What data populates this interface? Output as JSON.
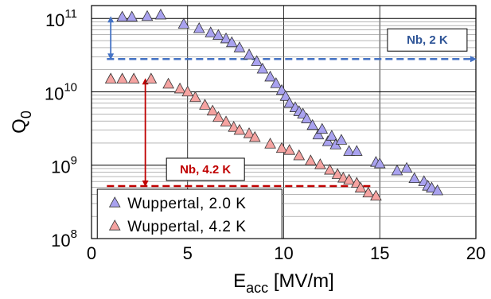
{
  "chart_data": {
    "type": "scatter",
    "title": "",
    "xlabel_main": "E",
    "xlabel_sub": "acc",
    "xlabel_unit": " [MV/m]",
    "ylabel_main": "Q",
    "ylabel_sub": "0",
    "x_scale": "linear",
    "y_scale": "log",
    "xlim": [
      0,
      20
    ],
    "ylim": [
      100000000.0,
      150000000000.0
    ],
    "grid": true,
    "x_ticks": [
      0,
      5,
      10,
      15,
      20
    ],
    "x_tick_labels": [
      "0",
      "5",
      "10",
      "15",
      "20"
    ],
    "y_ticks": [
      {
        "value": 100000000.0,
        "base": "10",
        "exp": "8"
      },
      {
        "value": 1000000000.0,
        "base": "10",
        "exp": "9"
      },
      {
        "value": 10000000000.0,
        "base": "10",
        "exp": "10"
      },
      {
        "value": 100000000000.0,
        "base": "10",
        "exp": "11"
      }
    ],
    "legend_position": "bottom-left",
    "series": [
      {
        "name": "Wuppertal, 2.0 K",
        "color": "#a9a2ef",
        "marker": "triangle",
        "points": [
          [
            1.6,
            105000000000.0
          ],
          [
            2.1,
            105000000000.0
          ],
          [
            2.9,
            107000000000.0
          ],
          [
            3.6,
            112000000000.0
          ],
          [
            4.8,
            84000000000.0
          ],
          [
            5.6,
            73000000000.0
          ],
          [
            6.2,
            64000000000.0
          ],
          [
            6.6,
            59000000000.0
          ],
          [
            7.0,
            53000000000.0
          ],
          [
            7.3,
            47000000000.0
          ],
          [
            7.7,
            40000000000.0
          ],
          [
            8.2,
            32000000000.0
          ],
          [
            8.6,
            26000000000.0
          ],
          [
            8.9,
            20500000000.0
          ],
          [
            9.3,
            16000000000.0
          ],
          [
            9.6,
            13000000000.0
          ],
          [
            9.9,
            10500000000.0
          ],
          [
            10.1,
            8700000000.0
          ],
          [
            10.3,
            7000000000.0
          ],
          [
            10.6,
            6100000000.0
          ],
          [
            10.8,
            5400000000.0
          ],
          [
            11.0,
            5000000000.0
          ],
          [
            11.2,
            4300000000.0
          ],
          [
            11.5,
            3500000000.0
          ],
          [
            11.8,
            2600000000.0
          ],
          [
            12.0,
            3100000000.0
          ],
          [
            12.3,
            2100000000.0
          ],
          [
            12.5,
            2500000000.0
          ],
          [
            12.7,
            1900000000.0
          ],
          [
            13.0,
            2200000000.0
          ],
          [
            13.4,
            1550000000.0
          ],
          [
            13.8,
            1550000000.0
          ],
          [
            14.8,
            1100000000.0
          ],
          [
            15.0,
            1050000000.0
          ],
          [
            15.9,
            840000000.0
          ],
          [
            16.4,
            910000000.0
          ],
          [
            16.8,
            660000000.0
          ],
          [
            17.3,
            600000000.0
          ],
          [
            17.5,
            520000000.0
          ],
          [
            17.7,
            490000000.0
          ],
          [
            18.0,
            450000000.0
          ]
        ]
      },
      {
        "name": "Wuppertal, 4.2 K",
        "color": "#f5a3a1",
        "marker": "triangle",
        "points": [
          [
            1.0,
            15000000000.0
          ],
          [
            1.6,
            15000000000.0
          ],
          [
            2.2,
            15000000000.0
          ],
          [
            3.1,
            15000000000.0
          ],
          [
            4.0,
            12800000000.0
          ],
          [
            4.6,
            11000000000.0
          ],
          [
            5.0,
            10000000000.0
          ],
          [
            5.4,
            8400000000.0
          ],
          [
            5.9,
            6600000000.0
          ],
          [
            6.3,
            5500000000.0
          ],
          [
            6.6,
            4500000000.0
          ],
          [
            7.0,
            3900000000.0
          ],
          [
            7.4,
            3300000000.0
          ],
          [
            7.7,
            3000000000.0
          ],
          [
            8.2,
            2700000000.0
          ],
          [
            8.5,
            2400000000.0
          ],
          [
            9.3,
            1950000000.0
          ],
          [
            9.9,
            1700000000.0
          ],
          [
            10.3,
            1600000000.0
          ],
          [
            10.8,
            1350000000.0
          ],
          [
            11.4,
            1150000000.0
          ],
          [
            11.9,
            1020000000.0
          ],
          [
            12.4,
            860000000.0
          ],
          [
            12.8,
            750000000.0
          ],
          [
            13.1,
            670000000.0
          ],
          [
            13.4,
            630000000.0
          ],
          [
            13.8,
            570000000.0
          ],
          [
            14.0,
            490000000.0
          ],
          [
            14.4,
            420000000.0
          ],
          [
            14.8,
            380000000.0
          ]
        ]
      }
    ],
    "annotations": [
      {
        "text": "Nb, 2 K",
        "color": "#2f5597",
        "line_color": "#4472c4",
        "y": 28000000000.0,
        "x_start": 0.8,
        "x_end": 20.0
      },
      {
        "text": "Nb, 4.2 K",
        "color": "#c00000",
        "line_color": "#c00000",
        "y": 520000000.0,
        "x_start": 0.8,
        "x_end": 14.6
      }
    ],
    "gap_arrows": [
      {
        "x": 1.0,
        "y_top": 105000000000.0,
        "y_bottom": 28000000000.0,
        "color": "#4472c4"
      },
      {
        "x": 2.8,
        "y_top": 15000000000.0,
        "y_bottom": 520000000.0,
        "color": "#c00000"
      }
    ]
  }
}
